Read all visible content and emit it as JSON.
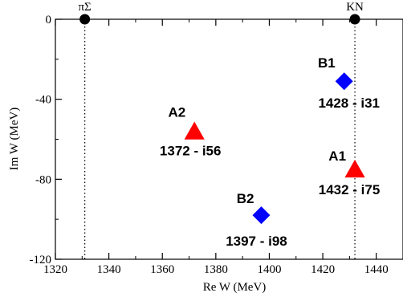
{
  "chart_data": {
    "type": "scatter",
    "xlabel": "Re W (MeV)",
    "ylabel": "Im W (MeV)",
    "xlim": [
      1320,
      1450
    ],
    "ylim": [
      -120,
      0
    ],
    "xticks": [
      1320,
      1340,
      1360,
      1380,
      1400,
      1420,
      1440
    ],
    "yticks": [
      0,
      -40,
      -80,
      -120
    ],
    "grid": false,
    "thresholds": [
      {
        "label": "πΣ",
        "x": 1331
      },
      {
        "label": "KN",
        "x": 1432
      }
    ],
    "points": [
      {
        "name": "B1",
        "value_label": "1428 - i31",
        "x": 1428,
        "y": -31,
        "marker": "diamond",
        "color": "#0000ff"
      },
      {
        "name": "A2",
        "value_label": "1372 - i56",
        "x": 1372,
        "y": -56,
        "marker": "triangle",
        "color": "#ff0000"
      },
      {
        "name": "A1",
        "value_label": "1432 - i75",
        "x": 1432,
        "y": -75,
        "marker": "triangle",
        "color": "#ff0000"
      },
      {
        "name": "B2",
        "value_label": "1397 - i98",
        "x": 1397,
        "y": -98,
        "marker": "diamond",
        "color": "#0000ff"
      }
    ]
  }
}
